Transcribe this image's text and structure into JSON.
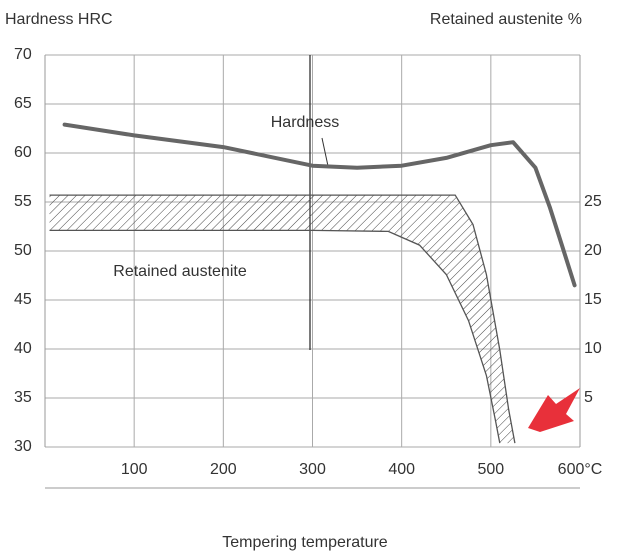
{
  "chart_data": {
    "type": "line",
    "y_title": "Hardness HRC",
    "y2_title": "Retained austenite %",
    "x_title": "Tempering temperature",
    "annotations": [
      "Hardness",
      "Retained austenite"
    ],
    "xlim": [
      0,
      600
    ],
    "xticks": [
      100,
      200,
      300,
      400,
      500,
      {
        "value": 600,
        "label": "600°C"
      }
    ],
    "ylim": [
      30,
      70
    ],
    "yticks": [
      30,
      35,
      40,
      45,
      50,
      55,
      60,
      65,
      70
    ],
    "y2lim": [
      0,
      40
    ],
    "y2ticks": [
      5,
      10,
      15,
      20,
      25
    ],
    "grid": true,
    "series": [
      {
        "name": "Hardness",
        "color": "#666666",
        "x": [
          22,
          100,
          200,
          300,
          350,
          400,
          450,
          500,
          525,
          550,
          566,
          580,
          594
        ],
        "values": [
          62.9,
          61.8,
          60.6,
          58.7,
          58.5,
          58.7,
          59.5,
          60.8,
          61.1,
          58.5,
          54.5,
          50.5,
          46.5
        ]
      },
      {
        "name": "Retained austenite",
        "color": "#555555",
        "axis": "y2",
        "x": [
          5,
          100,
          200,
          300,
          400,
          460,
          480,
          495,
          510,
          520,
          527
        ],
        "upper": [
          25.7,
          25.7,
          25.7,
          25.7,
          25.7,
          25.7,
          22.7,
          17.6,
          9.9,
          3.8,
          0.4
        ],
        "lower_x": [
          5,
          100,
          200,
          300,
          385,
          420,
          450,
          475,
          495,
          505,
          510
        ],
        "lower": [
          22.1,
          22.1,
          22.1,
          22.1,
          22,
          20.6,
          17.6,
          12.9,
          7.3,
          2.8,
          0.4
        ]
      }
    ]
  }
}
